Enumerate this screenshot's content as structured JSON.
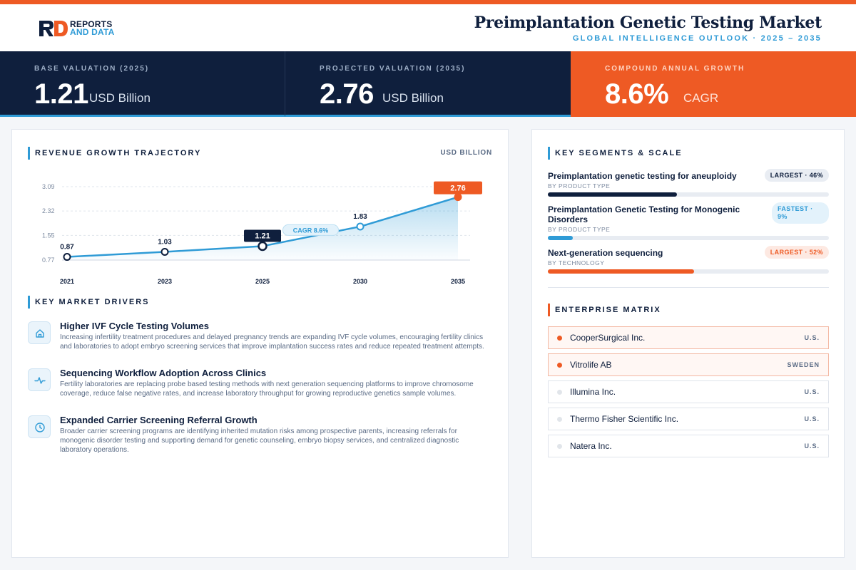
{
  "header": {
    "brand_line1": "REPORTS",
    "brand_line2": "AND DATA",
    "title": "Preimplantation Genetic Testing Market",
    "subtitle": "GLOBAL INTELLIGENCE OUTLOOK  ·  2025 – 2035"
  },
  "kpis": [
    {
      "label": "BASE VALUATION (2025)",
      "value": "1.21",
      "unit": "USD Billion"
    },
    {
      "label": "PROJECTED VALUATION (2035)",
      "value": "2.76",
      "unit": "USD Billion"
    },
    {
      "label": "COMPOUND ANNUAL GROWTH",
      "value": "8.6%",
      "unit": "CAGR"
    }
  ],
  "revenue": {
    "section_title": "REVENUE GROWTH TRAJECTORY",
    "unit_tag": "USD BILLION",
    "cagr_badge": "CAGR 8.6%"
  },
  "chart_data": {
    "type": "area",
    "title": "REVENUE GROWTH TRAJECTORY",
    "ylabel": "USD BILLION",
    "x": [
      "2021",
      "2023",
      "2025",
      "2030",
      "2035"
    ],
    "values": [
      0.87,
      1.03,
      1.21,
      1.83,
      2.76
    ],
    "value_labels": [
      "0.87",
      "1.03",
      "1.21",
      "1.83",
      "2.76"
    ],
    "yticks": [
      "3.09",
      "2.32",
      "1.55",
      "0.77"
    ],
    "ylim": [
      0.77,
      3.09
    ],
    "grid": true,
    "highlight_base_index": 2,
    "highlight_end_index": 4,
    "colors": {
      "line": "#2f9bd6",
      "base": "#0f1f3d",
      "end": "#ee5a24"
    }
  },
  "drivers": {
    "section_title": "KEY MARKET DRIVERS",
    "items": [
      {
        "icon": "home-icon",
        "title": "Higher IVF Cycle Testing Volumes",
        "desc": "Increasing infertility treatment procedures and delayed pregnancy trends are expanding IVF cycle volumes, encouraging fertility clinics and laboratories to adopt embryo screening services that improve implantation success rates and reduce repeated treatment attempts."
      },
      {
        "icon": "activity-icon",
        "title": "Sequencing Workflow Adoption Across Clinics",
        "desc": "Fertility laboratories are replacing probe based testing methods with next generation sequencing platforms to improve chromosome coverage, reduce false negative rates, and increase laboratory throughput for growing reproductive genetics sample volumes."
      },
      {
        "icon": "clock-icon",
        "title": "Expanded Carrier Screening Referral Growth",
        "desc": "Broader carrier screening programs are identifying inherited mutation risks among prospective parents, increasing referrals for monogenic disorder testing and supporting demand for genetic counseling, embryo biopsy services, and centralized diagnostic laboratory operations."
      }
    ]
  },
  "segments": {
    "section_title": "KEY SEGMENTS & SCALE",
    "items": [
      {
        "name": "Preimplantation genetic testing for aneuploidy",
        "sub": "BY PRODUCT TYPE",
        "badge": "LARGEST · 46%",
        "share": 0.46,
        "color": "#0f1f3d",
        "badge_bg": "#e9edf3",
        "badge_fg": "#0f1f3d"
      },
      {
        "name": "Preimplantation Genetic Testing for Monogenic Disorders",
        "sub": "BY PRODUCT TYPE",
        "badge": "FASTEST · 9%",
        "share": 0.09,
        "color": "#2f9bd6",
        "badge_bg": "#e3f2fb",
        "badge_fg": "#2f9bd6"
      },
      {
        "name": "Next-generation sequencing",
        "sub": "BY TECHNOLOGY",
        "badge": "LARGEST · 52%",
        "share": 0.52,
        "color": "#ee5a24",
        "badge_bg": "#fde9e2",
        "badge_fg": "#ee5a24"
      }
    ]
  },
  "enterprise": {
    "section_title": "ENTERPRISE MATRIX",
    "companies": [
      {
        "name": "CooperSurgical Inc.",
        "country": "U.S."
      },
      {
        "name": "Vitrolife AB",
        "country": "SWEDEN"
      },
      {
        "name": "Illumina Inc.",
        "country": "U.S."
      },
      {
        "name": "Thermo Fisher Scientific Inc.",
        "country": "U.S."
      },
      {
        "name": "Natera Inc.",
        "country": "U.S."
      }
    ]
  }
}
